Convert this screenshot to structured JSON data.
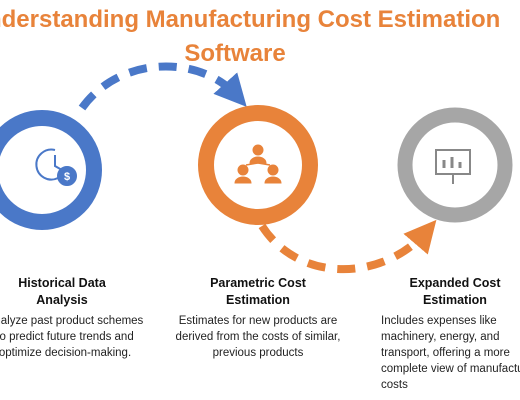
{
  "header": {
    "title_lines": [
      "Understanding Manufacturing Cost Estimation",
      "Software"
    ]
  },
  "nodes": [
    {
      "heading_lines": [
        "Historical Data",
        "Analysis"
      ],
      "description_lines": [
        "Analyze past product schemes",
        "to predict future trends and",
        "optimize decision-making."
      ]
    },
    {
      "heading_lines": [
        "Parametric Cost",
        "Estimation"
      ],
      "description_lines": [
        "Estimates for new products are",
        "derived from the costs of similar,",
        "previous products"
      ]
    },
    {
      "heading_lines": [
        "Expanded Cost",
        "Estimation"
      ],
      "description_lines": [
        "Includes expenses like",
        "machinery, energy, and",
        "transport, offering a more",
        "complete view of manufacturing",
        "costs"
      ]
    }
  ]
}
